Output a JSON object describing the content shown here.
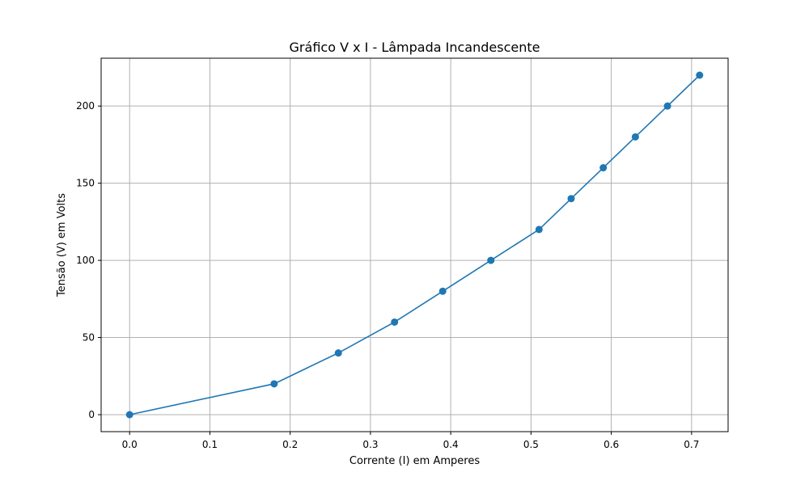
{
  "chart_data": {
    "type": "line",
    "title": "Gráfico V x I - Lâmpada Incandescente",
    "xlabel": "Corrente (I) em Amperes",
    "ylabel": "Tensão (V) em Volts",
    "xlim": [
      -0.0355,
      0.7455
    ],
    "ylim": [
      -11,
      231
    ],
    "xticks": [
      0.0,
      0.1,
      0.2,
      0.3,
      0.4,
      0.5,
      0.6,
      0.7
    ],
    "xtick_labels": [
      "0.0",
      "0.1",
      "0.2",
      "0.3",
      "0.4",
      "0.5",
      "0.6",
      "0.7"
    ],
    "yticks": [
      0,
      50,
      100,
      150,
      200
    ],
    "ytick_labels": [
      "0",
      "50",
      "100",
      "150",
      "200"
    ],
    "grid": true,
    "series": [
      {
        "color": "#1f77b4",
        "marker": "circle",
        "x": [
          0.0,
          0.18,
          0.26,
          0.33,
          0.39,
          0.45,
          0.51,
          0.55,
          0.59,
          0.63,
          0.67,
          0.71
        ],
        "y": [
          0,
          20,
          40,
          60,
          80,
          100,
          120,
          140,
          160,
          180,
          200,
          220
        ]
      }
    ]
  }
}
